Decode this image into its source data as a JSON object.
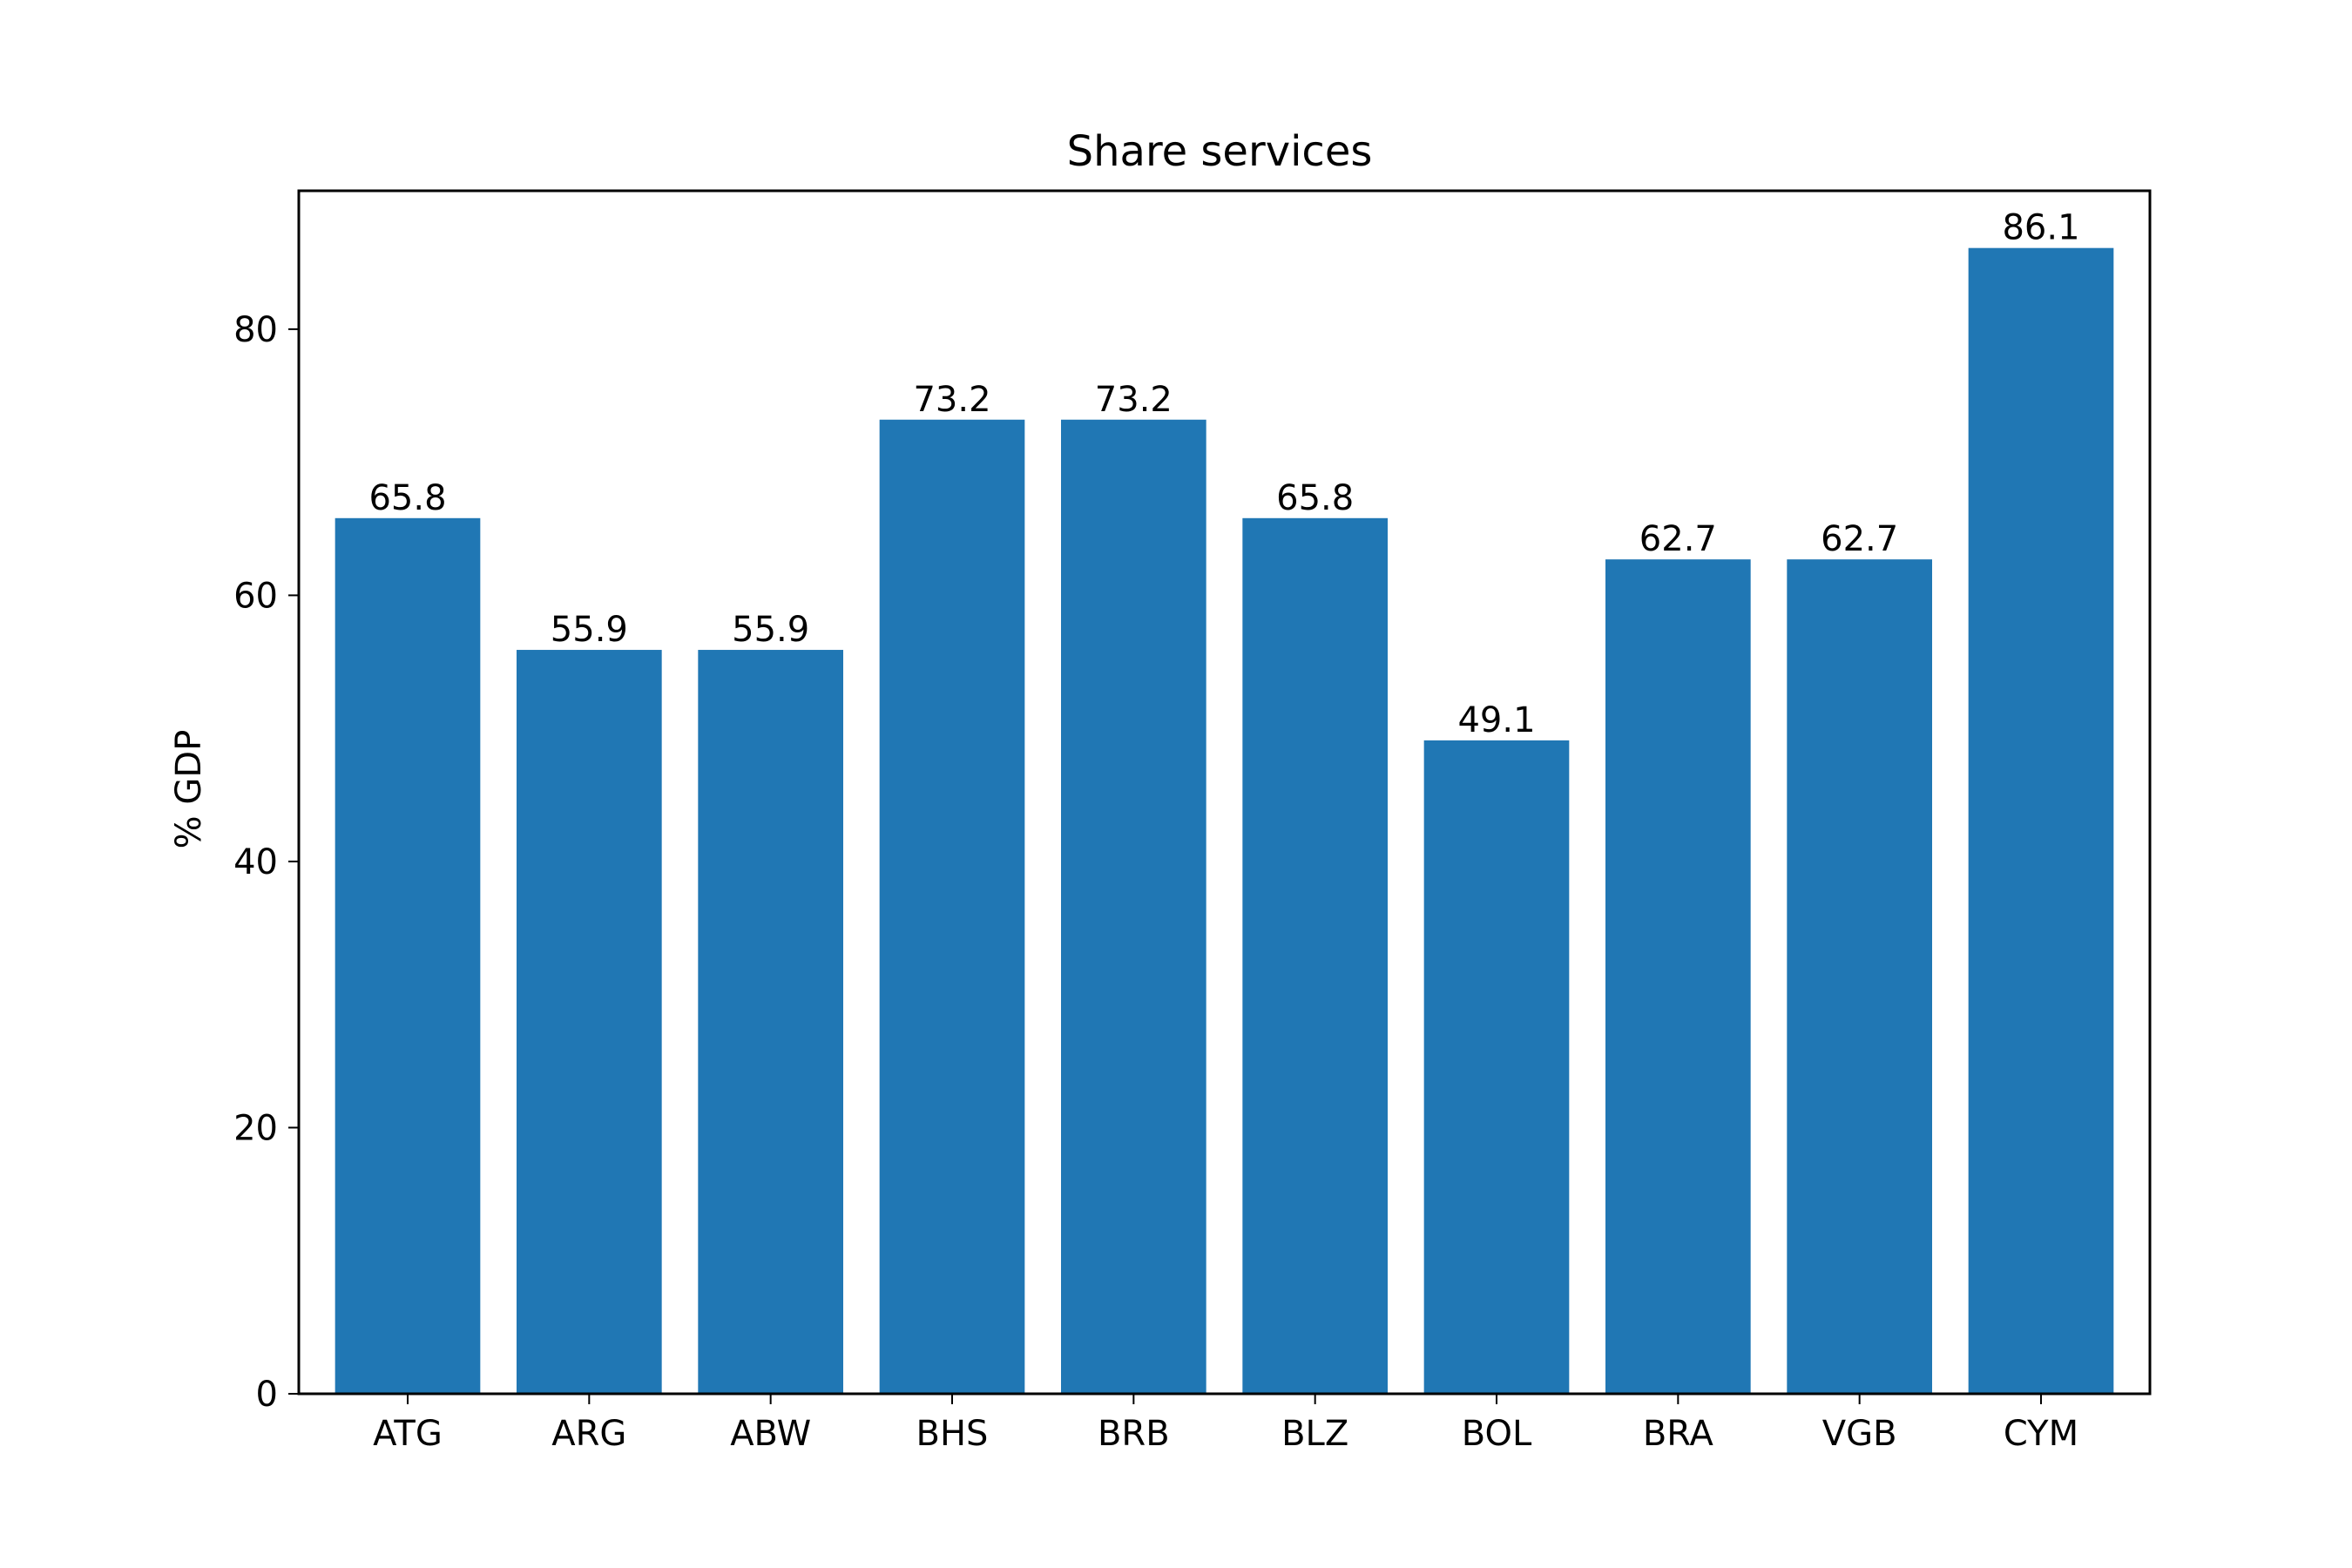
{
  "chart_data": {
    "type": "bar",
    "title": "Share services",
    "xlabel": "",
    "ylabel": "% GDP",
    "categories": [
      "ATG",
      "ARG",
      "ABW",
      "BHS",
      "BRB",
      "BLZ",
      "BOL",
      "BRA",
      "VGB",
      "CYM"
    ],
    "values": [
      65.8,
      55.9,
      55.9,
      73.2,
      73.2,
      65.8,
      49.1,
      62.7,
      62.7,
      86.1
    ],
    "data_labels": [
      "65.8",
      "55.9",
      "55.9",
      "73.2",
      "73.2",
      "65.8",
      "49.1",
      "62.7",
      "62.7",
      "86.1"
    ],
    "ylim": [
      0,
      90.4
    ],
    "yticks": [
      0,
      20,
      40,
      60,
      80
    ],
    "grid": false,
    "bar_color": "#2077b4"
  }
}
